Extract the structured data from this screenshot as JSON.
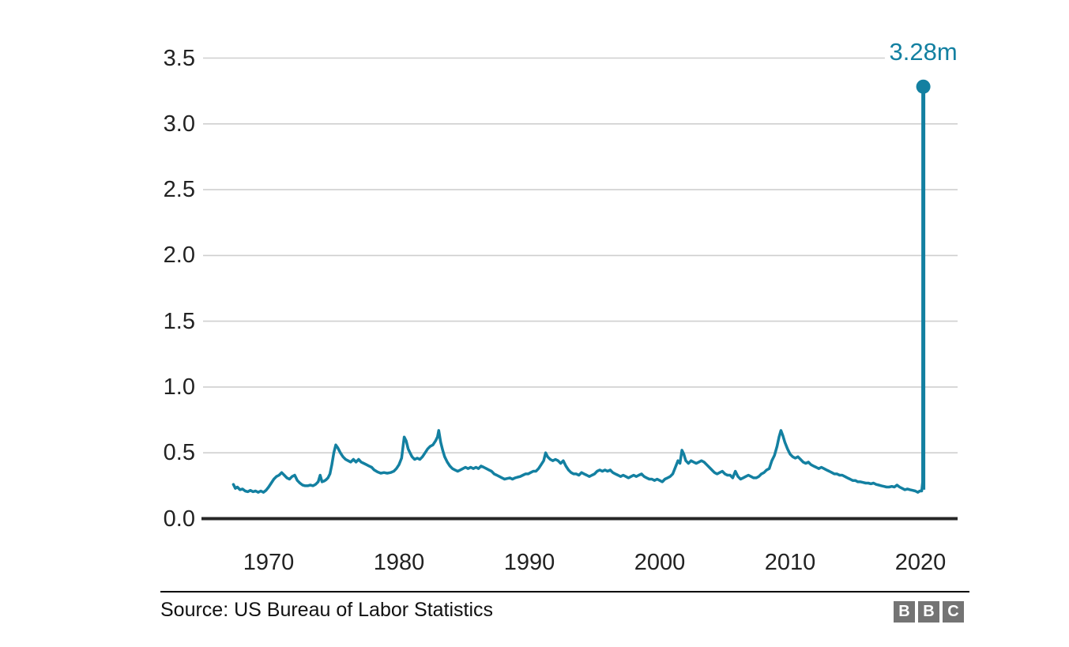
{
  "colors": {
    "line": "#1380A1",
    "grid": "#CFCFCF",
    "axis_baseline": "#262626",
    "tick_text": "#222222",
    "source_text": "#111111",
    "logo_gray": "#747474",
    "logo_text": "#ffffff"
  },
  "chart_data": {
    "type": "line",
    "title": "",
    "xlabel": "",
    "ylabel": "",
    "ylim": [
      0,
      3.5
    ],
    "x_range": [
      1965,
      2022.8
    ],
    "grid": "horizontal",
    "legend": "none",
    "y_ticks": [
      {
        "value": 0.0,
        "label": "0.0"
      },
      {
        "value": 0.5,
        "label": "0.5"
      },
      {
        "value": 1.0,
        "label": "1.0"
      },
      {
        "value": 1.5,
        "label": "1.5"
      },
      {
        "value": 2.0,
        "label": "2.0"
      },
      {
        "value": 2.5,
        "label": "2.5"
      },
      {
        "value": 3.0,
        "label": "3.0"
      },
      {
        "value": 3.5,
        "label": "3.5"
      }
    ],
    "x_ticks": [
      {
        "value": 1970,
        "label": "1970"
      },
      {
        "value": 1980,
        "label": "1980"
      },
      {
        "value": 1990,
        "label": "1990"
      },
      {
        "value": 2000,
        "label": "2000"
      },
      {
        "value": 2010,
        "label": "2010"
      },
      {
        "value": 2020,
        "label": "2020"
      }
    ],
    "annotation": {
      "text": "3.28m",
      "x": 2020.22,
      "y": 3.283
    },
    "series": [
      {
        "color": "#1380A1",
        "points": [
          [
            1967.3,
            0.26
          ],
          [
            1967.45,
            0.23
          ],
          [
            1967.6,
            0.24
          ],
          [
            1967.8,
            0.22
          ],
          [
            1968.0,
            0.225
          ],
          [
            1968.2,
            0.21
          ],
          [
            1968.4,
            0.205
          ],
          [
            1968.6,
            0.215
          ],
          [
            1968.8,
            0.205
          ],
          [
            1969.0,
            0.21
          ],
          [
            1969.2,
            0.2
          ],
          [
            1969.4,
            0.21
          ],
          [
            1969.6,
            0.2
          ],
          [
            1969.8,
            0.215
          ],
          [
            1970.0,
            0.24
          ],
          [
            1970.2,
            0.27
          ],
          [
            1970.4,
            0.3
          ],
          [
            1970.6,
            0.32
          ],
          [
            1970.8,
            0.33
          ],
          [
            1971.0,
            0.35
          ],
          [
            1971.2,
            0.33
          ],
          [
            1971.4,
            0.31
          ],
          [
            1971.6,
            0.3
          ],
          [
            1971.8,
            0.32
          ],
          [
            1972.0,
            0.33
          ],
          [
            1972.2,
            0.29
          ],
          [
            1972.4,
            0.27
          ],
          [
            1972.6,
            0.255
          ],
          [
            1972.8,
            0.25
          ],
          [
            1973.0,
            0.25
          ],
          [
            1973.2,
            0.255
          ],
          [
            1973.4,
            0.25
          ],
          [
            1973.6,
            0.26
          ],
          [
            1973.8,
            0.28
          ],
          [
            1973.95,
            0.33
          ],
          [
            1974.1,
            0.28
          ],
          [
            1974.25,
            0.285
          ],
          [
            1974.4,
            0.295
          ],
          [
            1974.55,
            0.31
          ],
          [
            1974.7,
            0.34
          ],
          [
            1974.85,
            0.41
          ],
          [
            1975.0,
            0.5
          ],
          [
            1975.15,
            0.56
          ],
          [
            1975.3,
            0.54
          ],
          [
            1975.5,
            0.5
          ],
          [
            1975.7,
            0.47
          ],
          [
            1975.9,
            0.45
          ],
          [
            1976.1,
            0.44
          ],
          [
            1976.3,
            0.43
          ],
          [
            1976.5,
            0.45
          ],
          [
            1976.7,
            0.43
          ],
          [
            1976.9,
            0.45
          ],
          [
            1977.1,
            0.43
          ],
          [
            1977.3,
            0.42
          ],
          [
            1977.5,
            0.41
          ],
          [
            1977.7,
            0.4
          ],
          [
            1977.9,
            0.39
          ],
          [
            1978.1,
            0.37
          ],
          [
            1978.35,
            0.355
          ],
          [
            1978.6,
            0.345
          ],
          [
            1978.85,
            0.35
          ],
          [
            1979.1,
            0.345
          ],
          [
            1979.35,
            0.35
          ],
          [
            1979.6,
            0.36
          ],
          [
            1979.8,
            0.38
          ],
          [
            1980.0,
            0.41
          ],
          [
            1980.2,
            0.46
          ],
          [
            1980.4,
            0.62
          ],
          [
            1980.55,
            0.59
          ],
          [
            1980.7,
            0.53
          ],
          [
            1980.85,
            0.5
          ],
          [
            1981.0,
            0.47
          ],
          [
            1981.2,
            0.45
          ],
          [
            1981.4,
            0.46
          ],
          [
            1981.6,
            0.45
          ],
          [
            1981.8,
            0.47
          ],
          [
            1982.0,
            0.5
          ],
          [
            1982.2,
            0.53
          ],
          [
            1982.4,
            0.55
          ],
          [
            1982.6,
            0.56
          ],
          [
            1982.8,
            0.59
          ],
          [
            1982.95,
            0.62
          ],
          [
            1983.05,
            0.67
          ],
          [
            1983.2,
            0.58
          ],
          [
            1983.35,
            0.52
          ],
          [
            1983.5,
            0.47
          ],
          [
            1983.7,
            0.43
          ],
          [
            1983.9,
            0.4
          ],
          [
            1984.1,
            0.38
          ],
          [
            1984.3,
            0.37
          ],
          [
            1984.5,
            0.36
          ],
          [
            1984.7,
            0.37
          ],
          [
            1984.9,
            0.38
          ],
          [
            1985.1,
            0.39
          ],
          [
            1985.3,
            0.38
          ],
          [
            1985.5,
            0.39
          ],
          [
            1985.7,
            0.38
          ],
          [
            1985.9,
            0.39
          ],
          [
            1986.1,
            0.38
          ],
          [
            1986.3,
            0.4
          ],
          [
            1986.5,
            0.39
          ],
          [
            1986.7,
            0.38
          ],
          [
            1986.9,
            0.37
          ],
          [
            1987.1,
            0.36
          ],
          [
            1987.3,
            0.34
          ],
          [
            1987.5,
            0.33
          ],
          [
            1987.7,
            0.32
          ],
          [
            1987.9,
            0.31
          ],
          [
            1988.1,
            0.3
          ],
          [
            1988.3,
            0.305
          ],
          [
            1988.5,
            0.31
          ],
          [
            1988.7,
            0.3
          ],
          [
            1988.9,
            0.31
          ],
          [
            1989.1,
            0.315
          ],
          [
            1989.3,
            0.32
          ],
          [
            1989.5,
            0.33
          ],
          [
            1989.7,
            0.34
          ],
          [
            1989.9,
            0.34
          ],
          [
            1990.1,
            0.35
          ],
          [
            1990.3,
            0.36
          ],
          [
            1990.5,
            0.36
          ],
          [
            1990.7,
            0.38
          ],
          [
            1990.9,
            0.41
          ],
          [
            1991.1,
            0.44
          ],
          [
            1991.25,
            0.5
          ],
          [
            1991.4,
            0.47
          ],
          [
            1991.6,
            0.45
          ],
          [
            1991.8,
            0.44
          ],
          [
            1992.0,
            0.45
          ],
          [
            1992.2,
            0.44
          ],
          [
            1992.4,
            0.42
          ],
          [
            1992.6,
            0.44
          ],
          [
            1992.8,
            0.4
          ],
          [
            1993.0,
            0.37
          ],
          [
            1993.2,
            0.35
          ],
          [
            1993.4,
            0.34
          ],
          [
            1993.6,
            0.34
          ],
          [
            1993.8,
            0.33
          ],
          [
            1994.0,
            0.35
          ],
          [
            1994.2,
            0.34
          ],
          [
            1994.4,
            0.33
          ],
          [
            1994.6,
            0.32
          ],
          [
            1994.8,
            0.33
          ],
          [
            1995.0,
            0.34
          ],
          [
            1995.2,
            0.36
          ],
          [
            1995.4,
            0.37
          ],
          [
            1995.6,
            0.36
          ],
          [
            1995.8,
            0.37
          ],
          [
            1996.0,
            0.36
          ],
          [
            1996.2,
            0.37
          ],
          [
            1996.4,
            0.35
          ],
          [
            1996.6,
            0.34
          ],
          [
            1996.8,
            0.33
          ],
          [
            1997.0,
            0.32
          ],
          [
            1997.2,
            0.33
          ],
          [
            1997.4,
            0.32
          ],
          [
            1997.6,
            0.31
          ],
          [
            1997.8,
            0.32
          ],
          [
            1998.0,
            0.33
          ],
          [
            1998.2,
            0.32
          ],
          [
            1998.4,
            0.33
          ],
          [
            1998.6,
            0.34
          ],
          [
            1998.8,
            0.32
          ],
          [
            1999.0,
            0.31
          ],
          [
            1999.2,
            0.3
          ],
          [
            1999.4,
            0.3
          ],
          [
            1999.6,
            0.29
          ],
          [
            1999.8,
            0.3
          ],
          [
            2000.0,
            0.29
          ],
          [
            2000.2,
            0.28
          ],
          [
            2000.4,
            0.3
          ],
          [
            2000.6,
            0.31
          ],
          [
            2000.8,
            0.32
          ],
          [
            2001.0,
            0.34
          ],
          [
            2001.2,
            0.39
          ],
          [
            2001.4,
            0.44
          ],
          [
            2001.55,
            0.42
          ],
          [
            2001.7,
            0.52
          ],
          [
            2001.85,
            0.49
          ],
          [
            2002.0,
            0.44
          ],
          [
            2002.2,
            0.42
          ],
          [
            2002.4,
            0.44
          ],
          [
            2002.6,
            0.43
          ],
          [
            2002.8,
            0.42
          ],
          [
            2003.0,
            0.43
          ],
          [
            2003.2,
            0.44
          ],
          [
            2003.4,
            0.43
          ],
          [
            2003.6,
            0.41
          ],
          [
            2003.8,
            0.39
          ],
          [
            2004.0,
            0.37
          ],
          [
            2004.2,
            0.35
          ],
          [
            2004.4,
            0.34
          ],
          [
            2004.6,
            0.35
          ],
          [
            2004.8,
            0.36
          ],
          [
            2005.0,
            0.34
          ],
          [
            2005.2,
            0.33
          ],
          [
            2005.4,
            0.33
          ],
          [
            2005.6,
            0.31
          ],
          [
            2005.8,
            0.36
          ],
          [
            2006.0,
            0.32
          ],
          [
            2006.2,
            0.3
          ],
          [
            2006.4,
            0.31
          ],
          [
            2006.6,
            0.32
          ],
          [
            2006.8,
            0.33
          ],
          [
            2007.0,
            0.32
          ],
          [
            2007.2,
            0.31
          ],
          [
            2007.4,
            0.31
          ],
          [
            2007.6,
            0.32
          ],
          [
            2007.8,
            0.34
          ],
          [
            2008.0,
            0.35
          ],
          [
            2008.2,
            0.37
          ],
          [
            2008.4,
            0.38
          ],
          [
            2008.6,
            0.44
          ],
          [
            2008.8,
            0.48
          ],
          [
            2009.0,
            0.55
          ],
          [
            2009.15,
            0.62
          ],
          [
            2009.3,
            0.67
          ],
          [
            2009.45,
            0.63
          ],
          [
            2009.6,
            0.58
          ],
          [
            2009.8,
            0.53
          ],
          [
            2010.0,
            0.49
          ],
          [
            2010.2,
            0.47
          ],
          [
            2010.4,
            0.46
          ],
          [
            2010.6,
            0.47
          ],
          [
            2010.8,
            0.45
          ],
          [
            2011.0,
            0.43
          ],
          [
            2011.2,
            0.42
          ],
          [
            2011.4,
            0.43
          ],
          [
            2011.6,
            0.41
          ],
          [
            2011.8,
            0.4
          ],
          [
            2012.0,
            0.39
          ],
          [
            2012.2,
            0.38
          ],
          [
            2012.4,
            0.39
          ],
          [
            2012.6,
            0.38
          ],
          [
            2012.8,
            0.37
          ],
          [
            2013.0,
            0.36
          ],
          [
            2013.2,
            0.35
          ],
          [
            2013.4,
            0.34
          ],
          [
            2013.6,
            0.34
          ],
          [
            2013.8,
            0.33
          ],
          [
            2014.0,
            0.33
          ],
          [
            2014.2,
            0.32
          ],
          [
            2014.4,
            0.31
          ],
          [
            2014.6,
            0.3
          ],
          [
            2014.8,
            0.29
          ],
          [
            2015.0,
            0.29
          ],
          [
            2015.2,
            0.28
          ],
          [
            2015.4,
            0.28
          ],
          [
            2015.6,
            0.275
          ],
          [
            2015.8,
            0.27
          ],
          [
            2016.0,
            0.27
          ],
          [
            2016.2,
            0.265
          ],
          [
            2016.4,
            0.27
          ],
          [
            2016.6,
            0.26
          ],
          [
            2016.8,
            0.255
          ],
          [
            2017.0,
            0.25
          ],
          [
            2017.2,
            0.245
          ],
          [
            2017.4,
            0.24
          ],
          [
            2017.6,
            0.24
          ],
          [
            2017.8,
            0.245
          ],
          [
            2018.0,
            0.24
          ],
          [
            2018.2,
            0.255
          ],
          [
            2018.4,
            0.24
          ],
          [
            2018.6,
            0.23
          ],
          [
            2018.8,
            0.22
          ],
          [
            2019.0,
            0.225
          ],
          [
            2019.2,
            0.22
          ],
          [
            2019.4,
            0.215
          ],
          [
            2019.6,
            0.21
          ],
          [
            2019.8,
            0.2
          ],
          [
            2019.95,
            0.21
          ],
          [
            2020.1,
            0.21
          ],
          [
            2020.17,
            0.28
          ],
          [
            2020.22,
            3.283
          ]
        ]
      }
    ]
  },
  "footer": {
    "source_label": "Source: US Bureau of Labor Statistics",
    "logo": {
      "letters": [
        "B",
        "B",
        "C"
      ]
    }
  }
}
